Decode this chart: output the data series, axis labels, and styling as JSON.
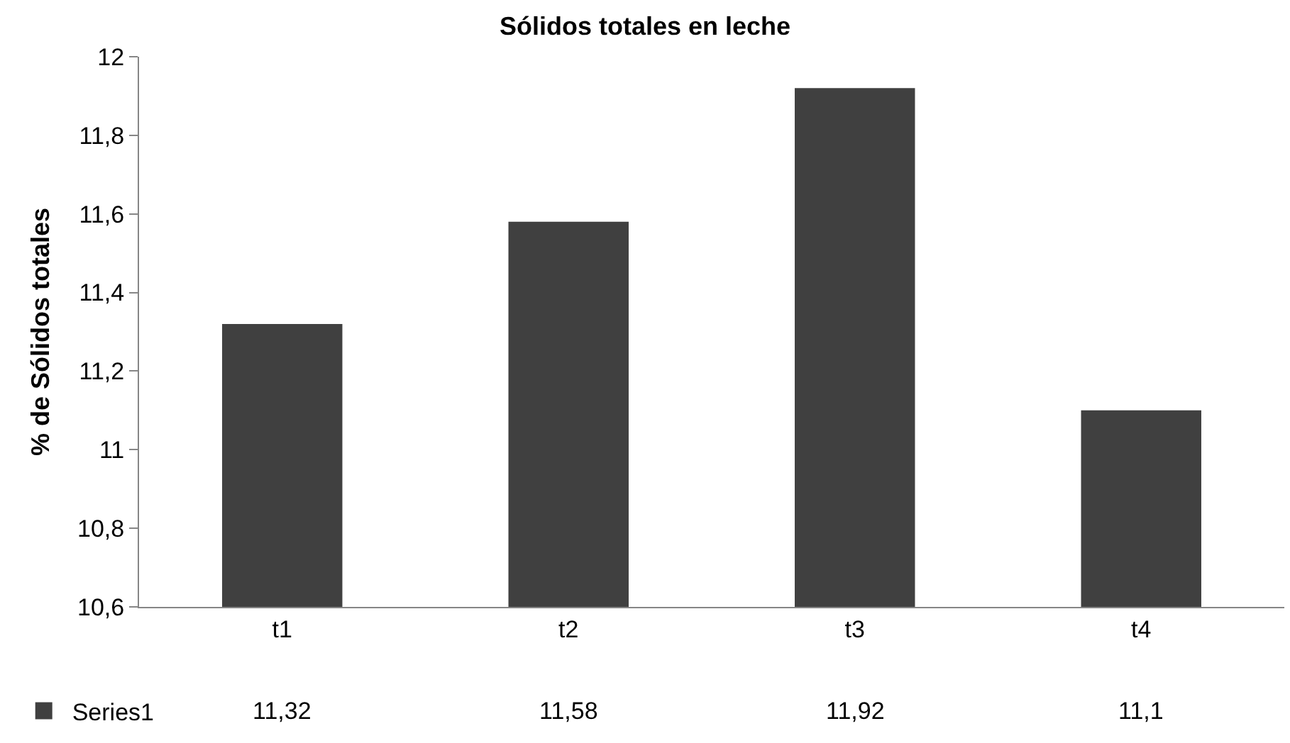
{
  "chart_data": {
    "type": "bar",
    "title": "Sólidos totales en leche",
    "ylabel": "% de Sólidos totales",
    "categories": [
      "t1",
      "t2",
      "t3",
      "t4"
    ],
    "series": [
      {
        "name": "Series1",
        "color": "#404040",
        "values": [
          11.32,
          11.58,
          11.92,
          11.1
        ],
        "value_labels": [
          "11,32",
          "11,58",
          "11,92",
          "11,1"
        ]
      }
    ],
    "ylim": [
      10.6,
      12
    ],
    "yticks": [
      {
        "value": 10.6,
        "label": "10,6"
      },
      {
        "value": 10.8,
        "label": "10,8"
      },
      {
        "value": 11,
        "label": "11"
      },
      {
        "value": 11.2,
        "label": "11,2"
      },
      {
        "value": 11.4,
        "label": "11,4"
      },
      {
        "value": 11.6,
        "label": "11,6"
      },
      {
        "value": 11.8,
        "label": "11,8"
      },
      {
        "value": 12,
        "label": "12"
      }
    ],
    "legend": "bottom left"
  }
}
